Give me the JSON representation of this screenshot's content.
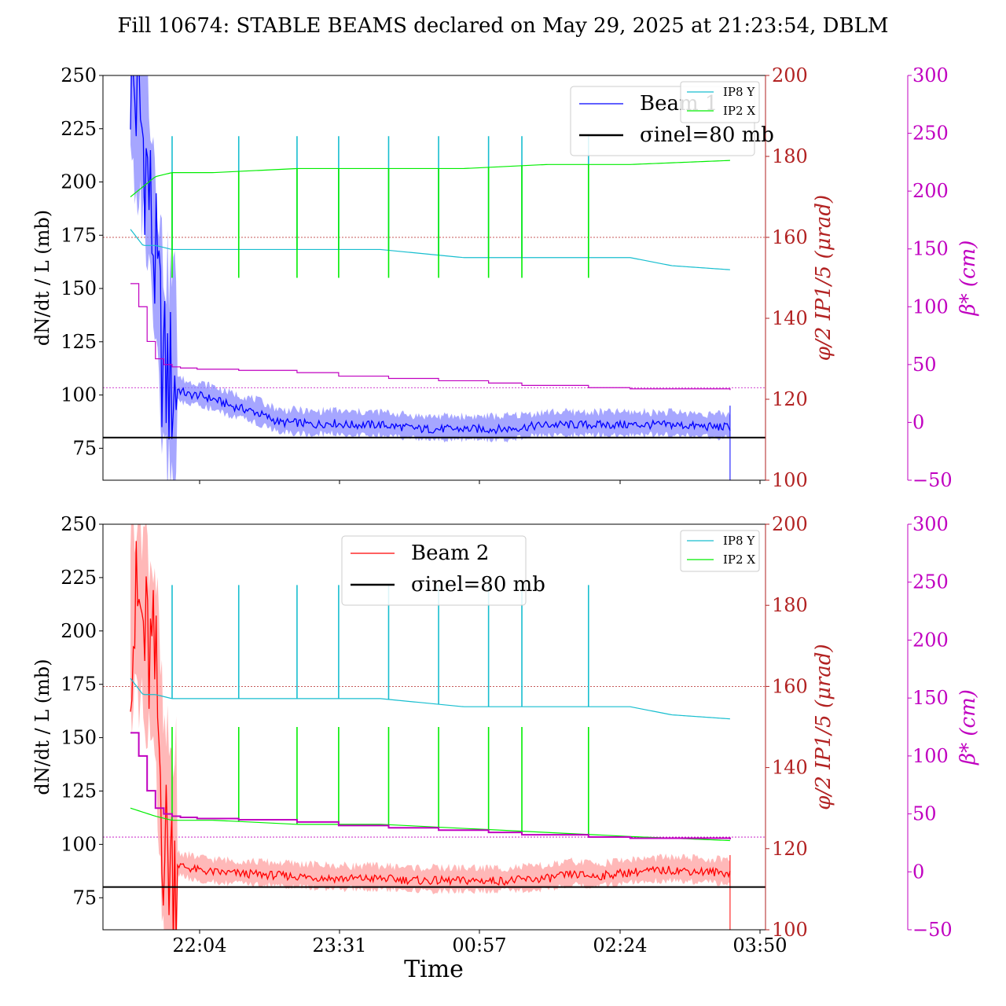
{
  "title": "Fill 10674: STABLE BEAMS declared on May 29, 2025 at 21:23:54, DBLM",
  "xlabel": "Time",
  "x_ticks": [
    "22:04",
    "23:31",
    "00:57",
    "02:24",
    "03:50"
  ],
  "colors": {
    "beam1": "#0000ff",
    "beam1_band": "#8080ff",
    "beam2": "#ff0000",
    "beam2_band": "#ff9a9a",
    "ip8y": "#17becf",
    "ip2x": "#00ee00",
    "beta": "#c000c0",
    "phi_axis": "#b22222",
    "sigma": "#000000"
  },
  "chart_data": [
    {
      "type": "line",
      "panel": "top",
      "ylabel_left": "dN/dt / L (mb)",
      "ylabel_right1": "φ/2 IP1/5 (μrad)",
      "ylabel_right2": "β* (cm)",
      "ylim_left": [
        60,
        250
      ],
      "ylim_right1": [
        100,
        200
      ],
      "ylim_right2": [
        -50,
        300
      ],
      "yticks_left": [
        "75",
        "100",
        "125",
        "150",
        "175",
        "200",
        "225",
        "250"
      ],
      "yticks_right1": [
        "100",
        "120",
        "140",
        "160",
        "180",
        "200"
      ],
      "yticks_right2": [
        "−50",
        "0",
        "50",
        "100",
        "150",
        "200",
        "250",
        "300"
      ],
      "legend_main": {
        "placement": "upper center-right",
        "entries": [
          "Beam 1",
          "σinel=80 mb"
        ]
      },
      "legend_small": {
        "placement": "top-right",
        "entries": [
          "IP8 Y",
          "IP2 X"
        ]
      },
      "sigma_inel_mb": 80,
      "phi_ref_line_urad": 160,
      "beta_ref_line_cm": 30,
      "beam": {
        "name": "Beam 1",
        "x_hours": [
          0.0,
          0.1,
          0.2,
          0.3,
          0.4,
          0.5,
          0.6,
          0.7,
          0.8,
          1.0,
          1.2,
          1.5,
          1.8,
          2.0,
          2.2,
          2.4,
          2.6,
          3.0,
          3.5,
          4.0,
          4.5,
          5.0,
          5.5,
          6.0,
          6.5,
          7.0,
          7.5
        ],
        "values": [
          250,
          235,
          205,
          160,
          110,
          105,
          102,
          100,
          100,
          98,
          95,
          92,
          87,
          87,
          86,
          87,
          86,
          86,
          84,
          84,
          84,
          86,
          86,
          86,
          86,
          85,
          85
        ]
      },
      "ip8y": {
        "base_x_hours": [
          0.0,
          0.15,
          0.3,
          0.5,
          1.0,
          2.0,
          3.0,
          4.0,
          5.0,
          6.0,
          6.5,
          7.2
        ],
        "base_values": [
          162,
          158,
          158,
          157,
          157,
          157,
          157,
          155,
          155,
          155,
          153,
          152
        ],
        "spike_value": 185
      },
      "ip2x": {
        "base_x_hours": [
          0.0,
          0.3,
          0.5,
          1.0,
          2.0,
          3.0,
          4.0,
          5.0,
          6.0,
          7.2
        ],
        "base_values": [
          170,
          175,
          176,
          176,
          177,
          177,
          177,
          178,
          178,
          179
        ],
        "dip_value": 150
      },
      "spike_times_hours": [
        0.5,
        1.3,
        2.0,
        2.5,
        3.1,
        3.7,
        4.3,
        4.7,
        5.5
      ],
      "beta": {
        "x_hours": [
          0.0,
          0.1,
          0.2,
          0.3,
          0.4,
          0.5,
          0.6,
          0.8,
          1.3,
          2.0,
          2.5,
          3.1,
          3.7,
          4.3,
          4.7,
          5.5,
          6.0,
          7.2
        ],
        "values": [
          120,
          100,
          70,
          55,
          50,
          48,
          47,
          46,
          45,
          43,
          40,
          38,
          36,
          34,
          32,
          30,
          29,
          28
        ]
      }
    },
    {
      "type": "line",
      "panel": "bottom",
      "ylabel_left": "dN/dt / L (mb)",
      "ylabel_right1": "φ/2 IP1/5 (μrad)",
      "ylabel_right2": "β* (cm)",
      "ylim_left": [
        60,
        250
      ],
      "ylim_right1": [
        100,
        200
      ],
      "ylim_right2": [
        -50,
        300
      ],
      "yticks_left": [
        "75",
        "100",
        "125",
        "150",
        "175",
        "200",
        "225",
        "250"
      ],
      "yticks_right1": [
        "100",
        "120",
        "140",
        "160",
        "180",
        "200"
      ],
      "yticks_right2": [
        "−50",
        "0",
        "50",
        "100",
        "150",
        "200",
        "250",
        "300"
      ],
      "legend_main": {
        "placement": "upper center",
        "entries": [
          "Beam 2",
          "σinel=80 mb"
        ]
      },
      "legend_small": {
        "placement": "top-right",
        "entries": [
          "IP8 Y",
          "IP2 X"
        ]
      },
      "sigma_inel_mb": 80,
      "phi_ref_line_urad": 160,
      "beta_ref_line_cm": 30,
      "beam": {
        "name": "Beam 2",
        "x_hours": [
          0.0,
          0.1,
          0.2,
          0.3,
          0.4,
          0.5,
          0.6,
          0.8,
          1.0,
          1.5,
          2.0,
          2.5,
          3.0,
          3.5,
          4.0,
          4.5,
          5.0,
          5.3,
          5.6,
          6.0,
          6.5,
          7.0,
          7.5
        ],
        "values": [
          200,
          210,
          190,
          180,
          100,
          92,
          90,
          88,
          87,
          86,
          85,
          84,
          84,
          83,
          83,
          83,
          84,
          86,
          85,
          87,
          88,
          87,
          86
        ]
      },
      "ip8y": {
        "base_x_hours": [
          0.0,
          0.15,
          0.3,
          0.5,
          1.0,
          2.0,
          3.0,
          4.0,
          5.0,
          6.0,
          6.5,
          7.2
        ],
        "base_values": [
          162,
          158,
          158,
          157,
          157,
          157,
          157,
          155,
          155,
          155,
          153,
          152
        ],
        "spike_value": 185
      },
      "ip2x": {
        "base_x_hours": [
          0.0,
          0.3,
          0.5,
          1.0,
          2.0,
          3.0,
          4.0,
          5.0,
          6.0,
          7.2
        ],
        "base_values": [
          130,
          128,
          127,
          127,
          126,
          126,
          125,
          124,
          123,
          122
        ],
        "dip_value": 150
      },
      "spike_times_hours": [
        0.5,
        1.3,
        2.0,
        2.5,
        3.1,
        3.7,
        4.3,
        4.7,
        5.5
      ],
      "beta": {
        "x_hours": [
          0.0,
          0.1,
          0.2,
          0.3,
          0.4,
          0.5,
          0.6,
          0.8,
          1.3,
          2.0,
          2.5,
          3.1,
          3.7,
          4.3,
          4.7,
          5.5,
          6.0,
          7.2
        ],
        "values": [
          120,
          100,
          70,
          55,
          50,
          48,
          47,
          46,
          45,
          43,
          40,
          38,
          36,
          34,
          32,
          30,
          29,
          28
        ]
      }
    }
  ]
}
